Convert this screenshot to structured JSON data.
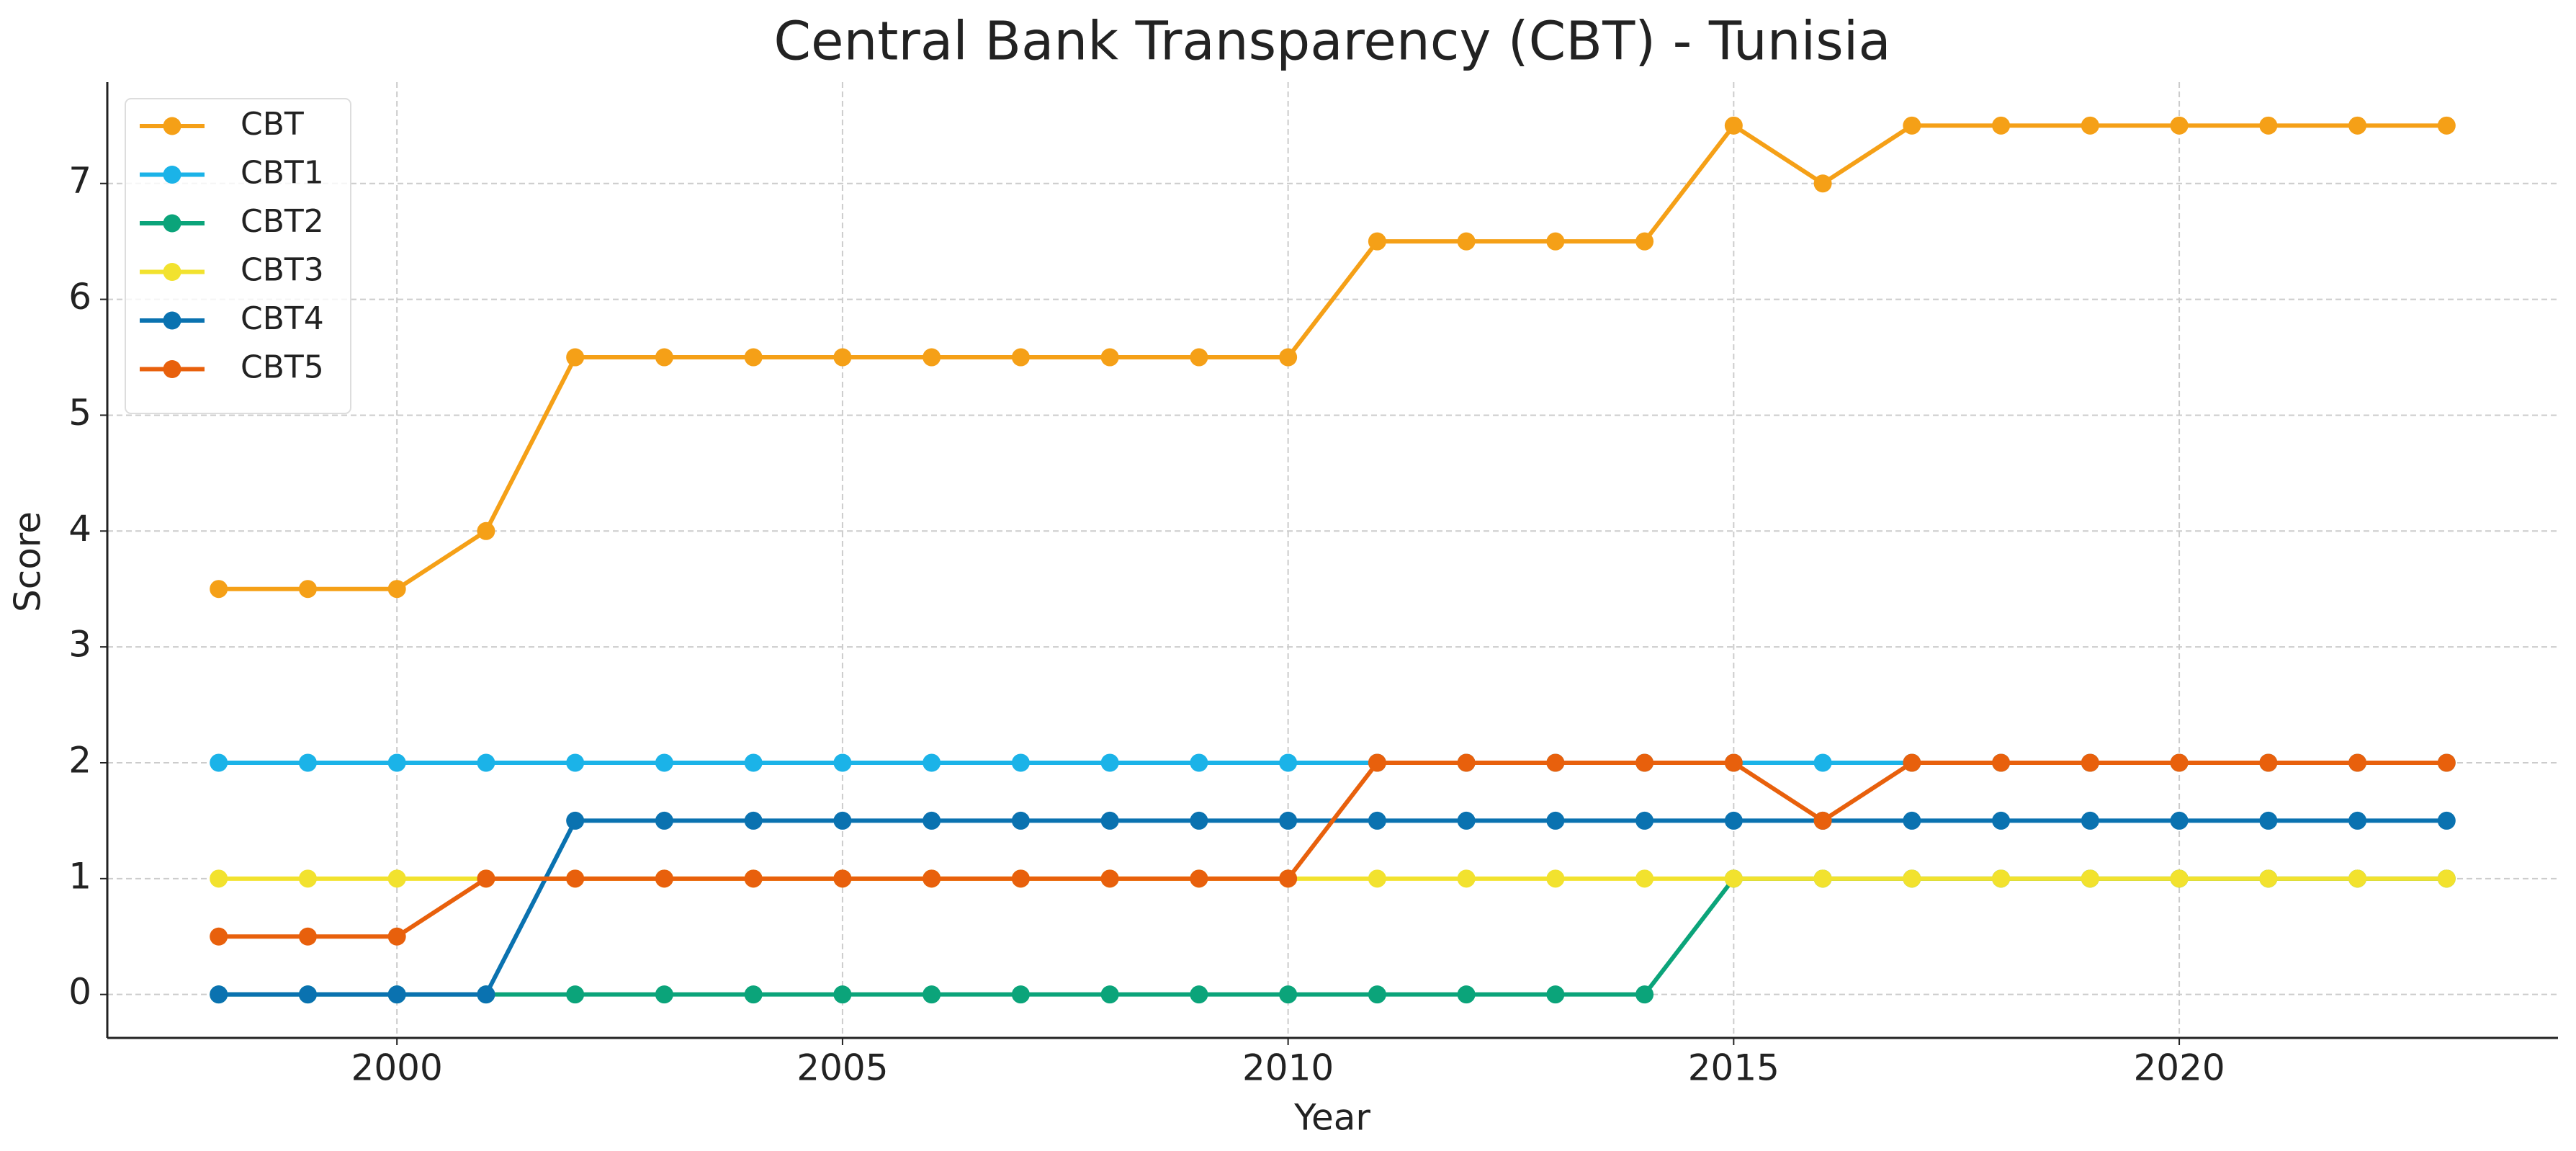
{
  "chart_data": {
    "type": "line",
    "title": "Central Bank Transparency (CBT) - Tunisia",
    "x_label": "Year",
    "y_label": "Score",
    "x": [
      1998,
      1999,
      2000,
      2001,
      2002,
      2003,
      2004,
      2005,
      2006,
      2007,
      2008,
      2009,
      2010,
      2011,
      2012,
      2013,
      2014,
      2015,
      2016,
      2017,
      2018,
      2019,
      2020,
      2021,
      2022,
      2023
    ],
    "series": [
      {
        "name": "CBT",
        "color": "#f5a017",
        "values": [
          3.5,
          3.5,
          3.5,
          4,
          5.5,
          5.5,
          5.5,
          5.5,
          5.5,
          5.5,
          5.5,
          5.5,
          5.5,
          6.5,
          6.5,
          6.5,
          6.5,
          7.5,
          7,
          7.5,
          7.5,
          7.5,
          7.5,
          7.5,
          7.5,
          7.5
        ]
      },
      {
        "name": "CBT1",
        "color": "#1bb3e8",
        "values": [
          2,
          2,
          2,
          2,
          2,
          2,
          2,
          2,
          2,
          2,
          2,
          2,
          2,
          2,
          2,
          2,
          2,
          2,
          2,
          2,
          2,
          2,
          2,
          2,
          2,
          2
        ]
      },
      {
        "name": "CBT2",
        "color": "#0ba47a",
        "values": [
          0,
          0,
          0,
          0,
          0,
          0,
          0,
          0,
          0,
          0,
          0,
          0,
          0,
          0,
          0,
          0,
          0,
          1,
          1,
          1,
          1,
          1,
          1,
          1,
          1,
          1
        ]
      },
      {
        "name": "CBT3",
        "color": "#f2e22e",
        "values": [
          1,
          1,
          1,
          1,
          1,
          1,
          1,
          1,
          1,
          1,
          1,
          1,
          1,
          1,
          1,
          1,
          1,
          1,
          1,
          1,
          1,
          1,
          1,
          1,
          1,
          1
        ]
      },
      {
        "name": "CBT4",
        "color": "#0a72b0",
        "values": [
          0,
          0,
          0,
          0,
          1.5,
          1.5,
          1.5,
          1.5,
          1.5,
          1.5,
          1.5,
          1.5,
          1.5,
          1.5,
          1.5,
          1.5,
          1.5,
          1.5,
          1.5,
          1.5,
          1.5,
          1.5,
          1.5,
          1.5,
          1.5,
          1.5
        ]
      },
      {
        "name": "CBT5",
        "color": "#e8600c",
        "values": [
          0.5,
          0.5,
          0.5,
          1,
          1,
          1,
          1,
          1,
          1,
          1,
          1,
          1,
          1,
          2,
          2,
          2,
          2,
          2,
          1.5,
          2,
          2,
          2,
          2,
          2,
          2,
          2
        ]
      }
    ],
    "xlim": [
      1996.75,
      2024.25
    ],
    "xticks": [
      2000,
      2005,
      2010,
      2015,
      2020
    ],
    "ylim": [
      -0.375,
      7.875
    ],
    "yticks": [
      0,
      1,
      2,
      3,
      4,
      5,
      6,
      7
    ],
    "grid": true,
    "legend": "upper left"
  }
}
